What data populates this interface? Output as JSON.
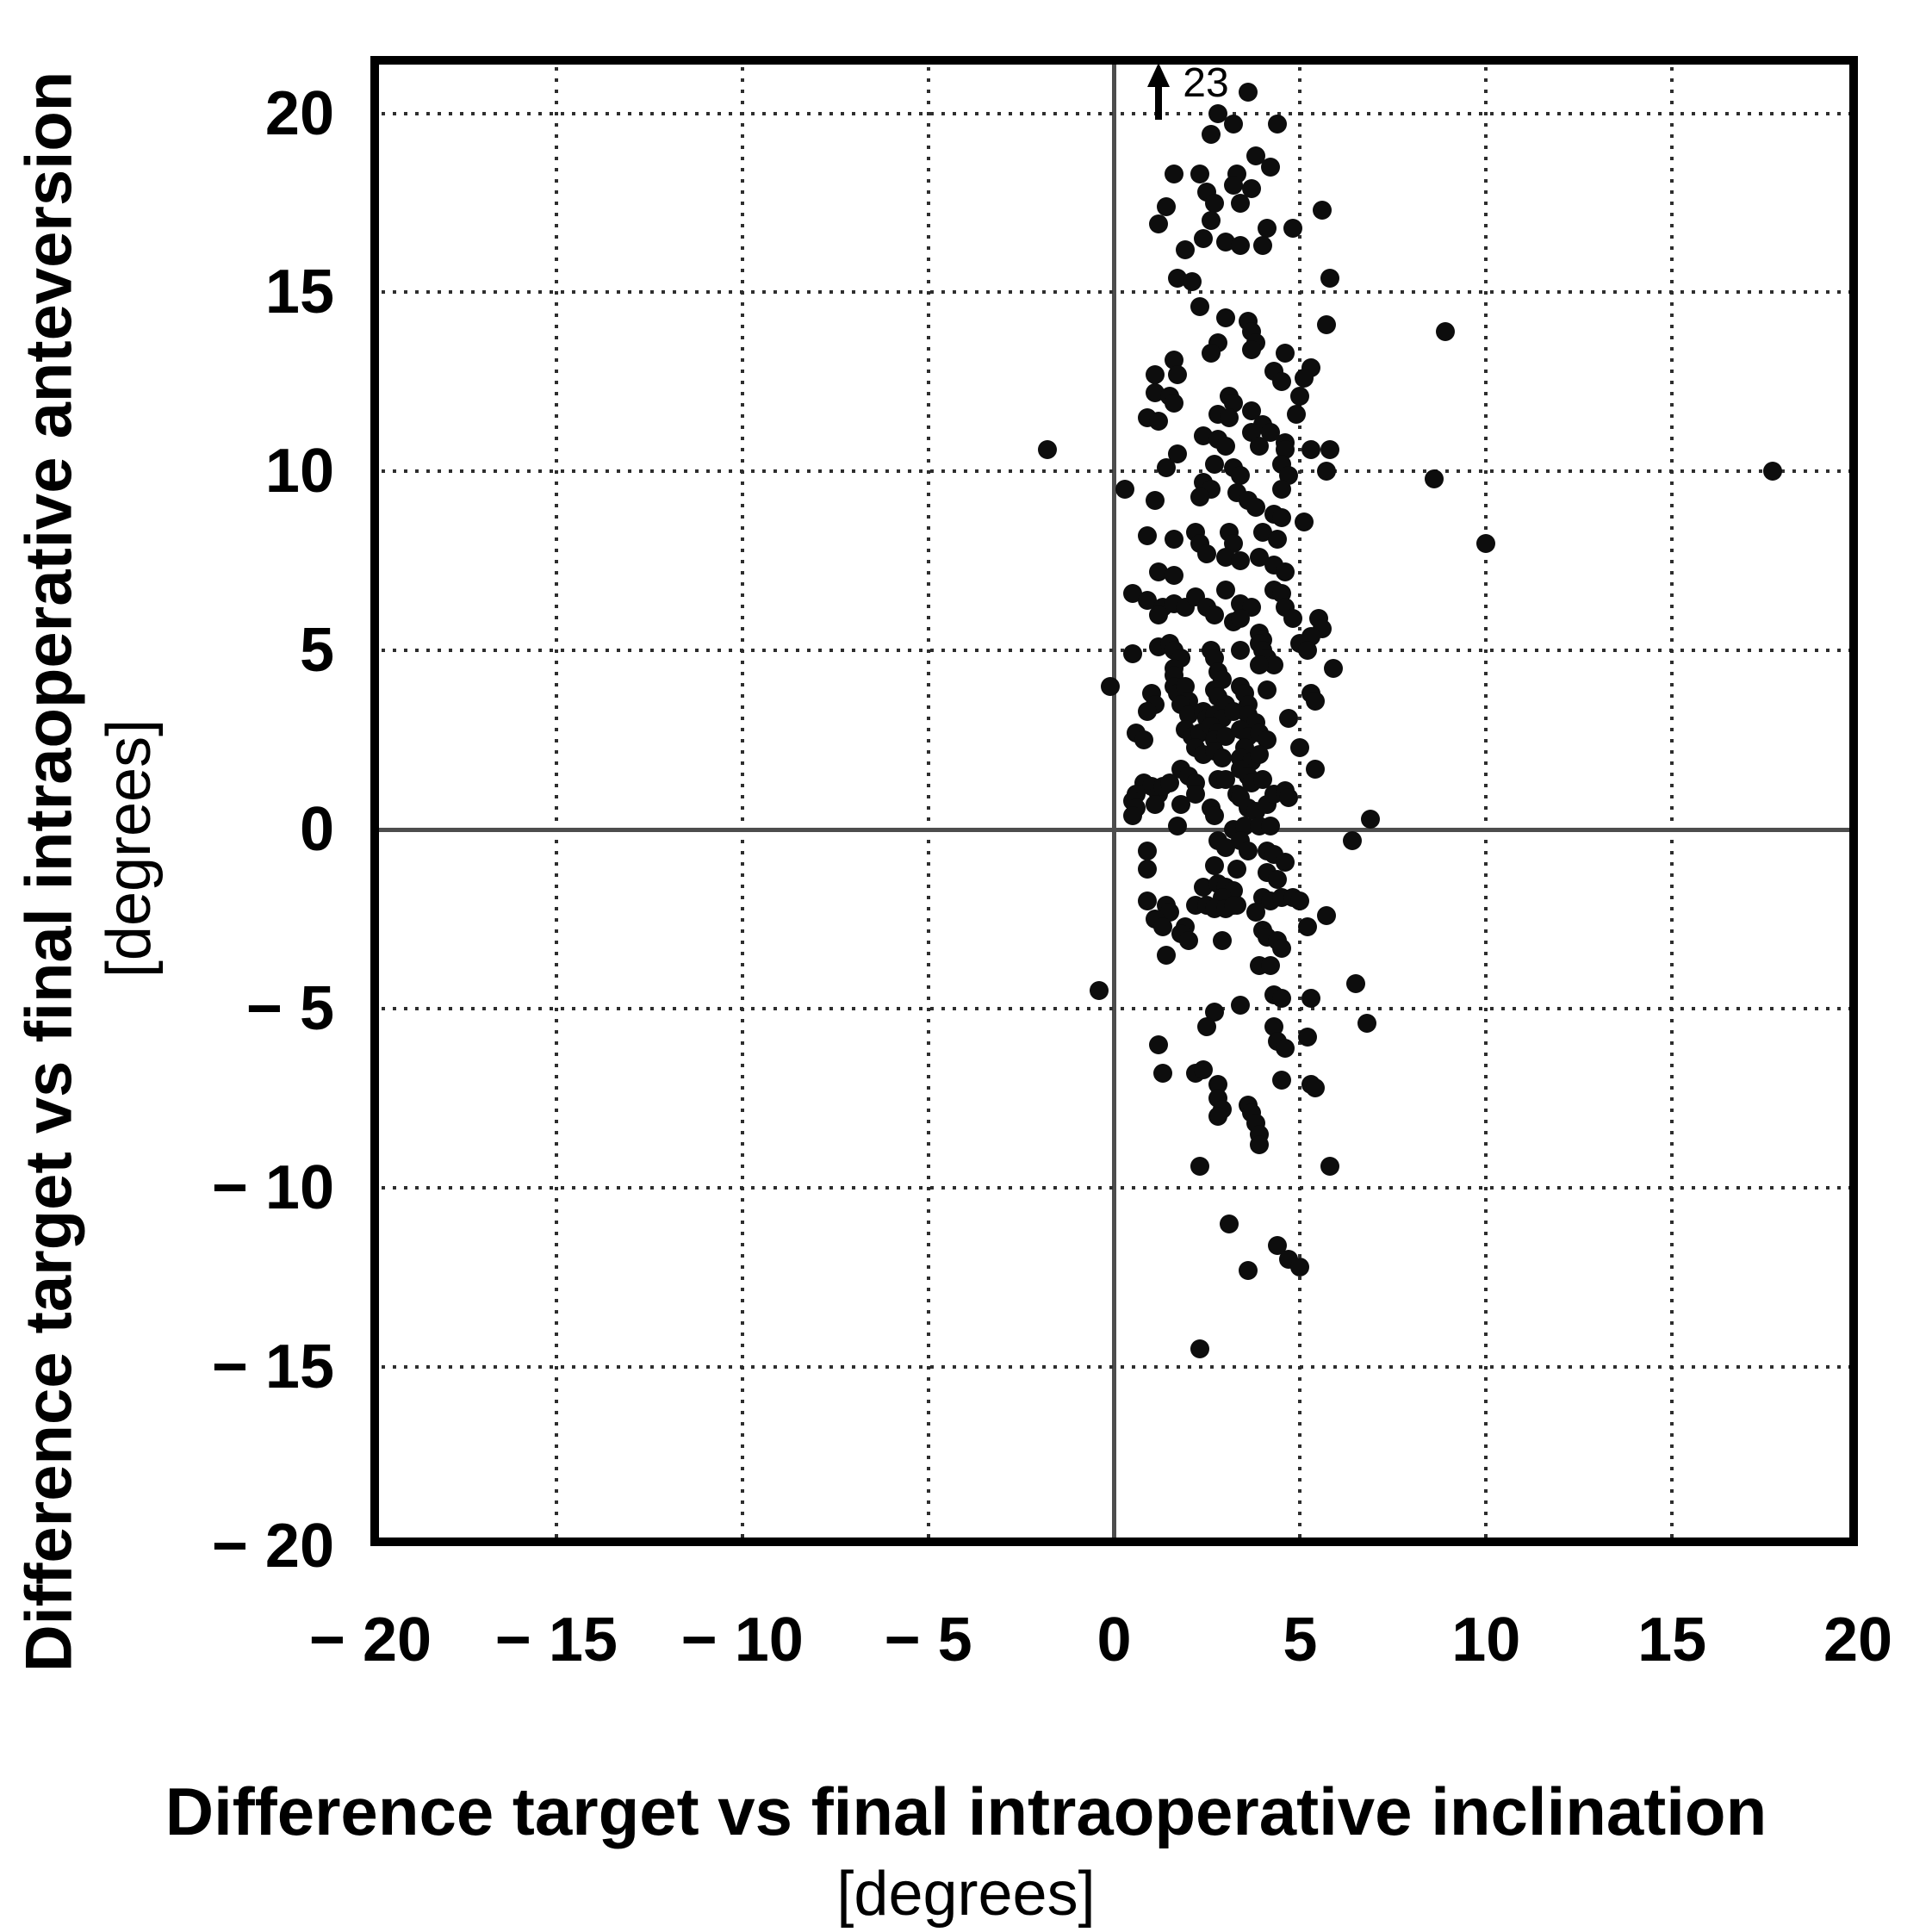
{
  "chart_data": {
    "type": "scatter",
    "title": "",
    "xlabel": "Difference target vs final intraoperative inclination",
    "xlabel_units": "[degrees]",
    "ylabel": "Difference target vs final intraoperative anteversion",
    "ylabel_units": "[degrees]",
    "xlim": [
      -20,
      20
    ],
    "ylim": [
      -20,
      21.6
    ],
    "x_ticks": [
      -20,
      -15,
      -10,
      -5,
      0,
      5,
      10,
      15,
      20
    ],
    "y_ticks": [
      20,
      15,
      10,
      5,
      0,
      -5,
      -10,
      -15,
      -20
    ],
    "x_tick_labels": [
      "− 20",
      "− 15",
      "− 10",
      "− 5",
      "0",
      "5",
      "10",
      "15",
      "20"
    ],
    "y_tick_labels": [
      "20",
      "15",
      "10",
      "5",
      "0",
      "− 5",
      "− 10",
      "− 15",
      "− 20"
    ],
    "grid": "dotted gridlines every 5 degrees; solid gray lines at x=0 and y=0",
    "legend": "none",
    "marker_color": "#0d0d0d",
    "grid_color": "#2e2e2e",
    "zero_line_color": "#4d4d4d",
    "offscale_annotation": {
      "label": "23",
      "x": 1.2,
      "meaning": "one point at anteversion 23 degrees, above axis range, marked with up arrow"
    },
    "points": [
      [
        3.6,
        20.6
      ],
      [
        2.8,
        20.0
      ],
      [
        3.2,
        19.7
      ],
      [
        4.4,
        19.7
      ],
      [
        2.6,
        19.4
      ],
      [
        3.8,
        18.8
      ],
      [
        4.2,
        18.5
      ],
      [
        1.6,
        18.3
      ],
      [
        2.3,
        18.3
      ],
      [
        3.3,
        18.3
      ],
      [
        3.2,
        18.0
      ],
      [
        3.7,
        17.9
      ],
      [
        2.5,
        17.8
      ],
      [
        2.7,
        17.5
      ],
      [
        3.4,
        17.5
      ],
      [
        1.4,
        17.4
      ],
      [
        5.6,
        17.3
      ],
      [
        2.6,
        17.0
      ],
      [
        1.2,
        16.9
      ],
      [
        4.1,
        16.8
      ],
      [
        4.8,
        16.8
      ],
      [
        2.4,
        16.5
      ],
      [
        3.0,
        16.4
      ],
      [
        3.4,
        16.3
      ],
      [
        4.0,
        16.3
      ],
      [
        1.9,
        16.2
      ],
      [
        5.8,
        15.4
      ],
      [
        1.7,
        15.4
      ],
      [
        2.1,
        15.3
      ],
      [
        2.3,
        14.6
      ],
      [
        3.0,
        14.3
      ],
      [
        3.6,
        14.2
      ],
      [
        5.7,
        14.1
      ],
      [
        3.7,
        13.9
      ],
      [
        2.8,
        13.6
      ],
      [
        3.8,
        13.6
      ],
      [
        3.7,
        13.4
      ],
      [
        2.6,
        13.3
      ],
      [
        4.6,
        13.3
      ],
      [
        1.6,
        13.1
      ],
      [
        1.7,
        12.7
      ],
      [
        1.1,
        12.7
      ],
      [
        4.3,
        12.8
      ],
      [
        5.3,
        12.9
      ],
      [
        5.1,
        12.6
      ],
      [
        4.5,
        12.5
      ],
      [
        1.1,
        12.2
      ],
      [
        1.5,
        12.1
      ],
      [
        1.6,
        11.9
      ],
      [
        3.1,
        12.1
      ],
      [
        3.2,
        11.9
      ],
      [
        5.0,
        12.1
      ],
      [
        4.9,
        11.6
      ],
      [
        0.9,
        11.5
      ],
      [
        1.2,
        11.4
      ],
      [
        2.8,
        11.6
      ],
      [
        3.1,
        11.5
      ],
      [
        3.7,
        11.7
      ],
      [
        4.0,
        11.3
      ],
      [
        4.2,
        11.1
      ],
      [
        3.7,
        11.1
      ],
      [
        2.4,
        11.0
      ],
      [
        2.8,
        10.9
      ],
      [
        3.0,
        10.7
      ],
      [
        3.9,
        10.7
      ],
      [
        4.6,
        10.8
      ],
      [
        4.6,
        10.6
      ],
      [
        5.3,
        10.6
      ],
      [
        5.8,
        10.6
      ],
      [
        1.7,
        10.5
      ],
      [
        1.4,
        10.1
      ],
      [
        2.7,
        10.2
      ],
      [
        3.2,
        10.1
      ],
      [
        3.4,
        9.9
      ],
      [
        4.5,
        10.2
      ],
      [
        4.7,
        9.9
      ],
      [
        5.7,
        10.0
      ],
      [
        0.3,
        9.5
      ],
      [
        1.1,
        9.2
      ],
      [
        2.4,
        9.7
      ],
      [
        2.6,
        9.5
      ],
      [
        2.3,
        9.3
      ],
      [
        3.3,
        9.4
      ],
      [
        3.6,
        9.2
      ],
      [
        3.8,
        9.0
      ],
      [
        4.5,
        9.5
      ],
      [
        4.3,
        8.8
      ],
      [
        4.5,
        8.7
      ],
      [
        5.1,
        8.6
      ],
      [
        0.9,
        8.2
      ],
      [
        1.6,
        8.1
      ],
      [
        2.2,
        8.3
      ],
      [
        2.3,
        8.0
      ],
      [
        3.1,
        8.3
      ],
      [
        3.2,
        8.0
      ],
      [
        4.0,
        8.3
      ],
      [
        4.4,
        8.1
      ],
      [
        2.5,
        7.7
      ],
      [
        3.0,
        7.6
      ],
      [
        3.4,
        7.5
      ],
      [
        3.9,
        7.6
      ],
      [
        4.3,
        7.4
      ],
      [
        1.2,
        7.2
      ],
      [
        1.6,
        7.1
      ],
      [
        4.6,
        7.2
      ],
      [
        0.5,
        6.6
      ],
      [
        0.9,
        6.4
      ],
      [
        1.3,
        6.2
      ],
      [
        1.2,
        6.0
      ],
      [
        1.6,
        6.3
      ],
      [
        1.9,
        6.2
      ],
      [
        2.2,
        6.5
      ],
      [
        2.5,
        6.2
      ],
      [
        2.7,
        6.0
      ],
      [
        3.0,
        6.7
      ],
      [
        3.4,
        6.3
      ],
      [
        3.7,
        6.2
      ],
      [
        3.2,
        5.8
      ],
      [
        3.4,
        5.9
      ],
      [
        4.3,
        6.7
      ],
      [
        4.5,
        6.6
      ],
      [
        4.6,
        6.2
      ],
      [
        4.8,
        5.9
      ],
      [
        3.9,
        5.5
      ],
      [
        4.0,
        5.3
      ],
      [
        5.5,
        5.9
      ],
      [
        5.6,
        5.6
      ],
      [
        5.3,
        5.4
      ],
      [
        0.5,
        4.9
      ],
      [
        1.2,
        5.1
      ],
      [
        1.5,
        5.2
      ],
      [
        1.6,
        5.0
      ],
      [
        1.8,
        4.8
      ],
      [
        2.6,
        5.0
      ],
      [
        2.7,
        4.8
      ],
      [
        3.4,
        5.0
      ],
      [
        3.9,
        5.2
      ],
      [
        4.0,
        5.0
      ],
      [
        4.1,
        4.8
      ],
      [
        4.3,
        4.6
      ],
      [
        3.9,
        4.6
      ],
      [
        5.0,
        5.2
      ],
      [
        5.2,
        5.0
      ],
      [
        5.9,
        4.5
      ],
      [
        2.8,
        4.4
      ],
      [
        1.6,
        4.5
      ],
      [
        1.6,
        4.3
      ],
      [
        2.9,
        4.2
      ],
      [
        -0.1,
        4.0
      ],
      [
        1.0,
        3.8
      ],
      [
        1.1,
        3.5
      ],
      [
        0.9,
        3.3
      ],
      [
        1.6,
        4.0
      ],
      [
        1.7,
        3.8
      ],
      [
        1.9,
        4.0
      ],
      [
        2.0,
        3.6
      ],
      [
        1.8,
        3.5
      ],
      [
        2.7,
        3.9
      ],
      [
        2.8,
        3.7
      ],
      [
        3.0,
        3.5
      ],
      [
        3.4,
        4.0
      ],
      [
        3.5,
        3.8
      ],
      [
        3.6,
        3.5
      ],
      [
        4.1,
        3.9
      ],
      [
        5.3,
        3.8
      ],
      [
        5.4,
        3.6
      ],
      [
        2.0,
        3.2
      ],
      [
        2.4,
        3.3
      ],
      [
        2.5,
        3.1
      ],
      [
        2.7,
        3.2
      ],
      [
        2.9,
        3.1
      ],
      [
        3.2,
        3.3
      ],
      [
        3.6,
        3.2
      ],
      [
        3.8,
        3.0
      ],
      [
        4.7,
        3.1
      ],
      [
        0.6,
        2.7
      ],
      [
        0.8,
        2.5
      ],
      [
        1.9,
        2.8
      ],
      [
        2.1,
        2.6
      ],
      [
        2.3,
        2.7
      ],
      [
        2.6,
        2.9
      ],
      [
        2.8,
        2.7
      ],
      [
        2.7,
        2.5
      ],
      [
        3.0,
        2.6
      ],
      [
        3.4,
        2.8
      ],
      [
        3.6,
        2.6
      ],
      [
        3.9,
        2.7
      ],
      [
        4.1,
        2.5
      ],
      [
        5.0,
        2.3
      ],
      [
        3.5,
        2.3
      ],
      [
        2.2,
        2.3
      ],
      [
        2.4,
        2.1
      ],
      [
        2.7,
        2.2
      ],
      [
        2.9,
        2.0
      ],
      [
        3.4,
        2.0
      ],
      [
        3.7,
        1.9
      ],
      [
        3.9,
        2.1
      ],
      [
        5.4,
        1.7
      ],
      [
        1.8,
        1.7
      ],
      [
        2.0,
        1.5
      ],
      [
        2.2,
        1.3
      ],
      [
        2.8,
        1.4
      ],
      [
        3.0,
        1.4
      ],
      [
        3.4,
        1.7
      ],
      [
        3.6,
        1.5
      ],
      [
        3.7,
        1.3
      ],
      [
        4.0,
        1.4
      ],
      [
        0.8,
        1.3
      ],
      [
        1.0,
        1.2
      ],
      [
        1.2,
        1.0
      ],
      [
        1.3,
        1.2
      ],
      [
        1.5,
        1.3
      ],
      [
        0.6,
        1.0
      ],
      [
        0.5,
        0.8
      ],
      [
        0.6,
        0.6
      ],
      [
        1.1,
        0.7
      ],
      [
        1.8,
        0.7
      ],
      [
        2.2,
        1.0
      ],
      [
        2.6,
        0.6
      ],
      [
        2.7,
        0.4
      ],
      [
        3.3,
        1.0
      ],
      [
        3.4,
        0.9
      ],
      [
        3.6,
        0.6
      ],
      [
        3.8,
        0.5
      ],
      [
        4.1,
        0.7
      ],
      [
        4.3,
        1.0
      ],
      [
        4.6,
        1.1
      ],
      [
        4.7,
        0.9
      ],
      [
        0.5,
        0.4
      ],
      [
        1.7,
        0.1
      ],
      [
        3.2,
        0.0
      ],
      [
        3.5,
        0.1
      ],
      [
        3.9,
        0.1
      ],
      [
        4.2,
        0.1
      ],
      [
        6.9,
        0.3
      ],
      [
        6.4,
        -0.3
      ],
      [
        2.8,
        -0.3
      ],
      [
        3.0,
        -0.5
      ],
      [
        3.4,
        -0.3
      ],
      [
        3.6,
        -0.6
      ],
      [
        4.1,
        -0.6
      ],
      [
        4.3,
        -0.7
      ],
      [
        0.9,
        -0.6
      ],
      [
        2.7,
        -1.0
      ],
      [
        3.3,
        -1.1
      ],
      [
        4.6,
        -0.9
      ],
      [
        0.9,
        -1.1
      ],
      [
        2.4,
        -1.6
      ],
      [
        2.8,
        -1.5
      ],
      [
        3.0,
        -1.6
      ],
      [
        3.2,
        -1.7
      ],
      [
        2.9,
        -1.9
      ],
      [
        3.3,
        -2.1
      ],
      [
        4.1,
        -1.2
      ],
      [
        4.4,
        -1.4
      ],
      [
        0.9,
        -2.0
      ],
      [
        1.4,
        -2.1
      ],
      [
        1.5,
        -2.3
      ],
      [
        1.1,
        -2.5
      ],
      [
        1.3,
        -2.7
      ],
      [
        2.2,
        -2.1
      ],
      [
        2.5,
        -2.1
      ],
      [
        2.7,
        -2.2
      ],
      [
        3.0,
        -2.2
      ],
      [
        3.2,
        -2.1
      ],
      [
        4.0,
        -1.9
      ],
      [
        4.2,
        -2.0
      ],
      [
        4.5,
        -1.9
      ],
      [
        4.8,
        -1.9
      ],
      [
        5.0,
        -2.0
      ],
      [
        3.8,
        -2.3
      ],
      [
        5.2,
        -2.7
      ],
      [
        5.7,
        -2.4
      ],
      [
        1.9,
        -2.7
      ],
      [
        1.8,
        -2.9
      ],
      [
        2.0,
        -3.1
      ],
      [
        2.9,
        -3.1
      ],
      [
        4.0,
        -2.8
      ],
      [
        4.1,
        -3.0
      ],
      [
        4.4,
        -3.1
      ],
      [
        4.5,
        -3.3
      ],
      [
        1.4,
        -3.5
      ],
      [
        3.9,
        -3.8
      ],
      [
        4.2,
        -3.8
      ],
      [
        -0.4,
        -4.5
      ],
      [
        6.5,
        -4.3
      ],
      [
        3.4,
        -4.9
      ],
      [
        4.3,
        -4.6
      ],
      [
        4.5,
        -4.7
      ],
      [
        5.3,
        -4.7
      ],
      [
        2.7,
        -5.1
      ],
      [
        2.5,
        -5.5
      ],
      [
        6.8,
        -5.4
      ],
      [
        4.3,
        -5.5
      ],
      [
        1.2,
        -6.0
      ],
      [
        4.4,
        -5.9
      ],
      [
        4.6,
        -6.1
      ],
      [
        5.2,
        -5.8
      ],
      [
        1.3,
        -6.8
      ],
      [
        2.2,
        -6.8
      ],
      [
        2.4,
        -6.7
      ],
      [
        2.8,
        -7.1
      ],
      [
        4.5,
        -7.0
      ],
      [
        5.3,
        -7.1
      ],
      [
        5.4,
        -7.2
      ],
      [
        2.8,
        -7.5
      ],
      [
        2.9,
        -7.8
      ],
      [
        2.8,
        -8.0
      ],
      [
        3.6,
        -7.7
      ],
      [
        3.7,
        -7.9
      ],
      [
        3.8,
        -8.2
      ],
      [
        3.9,
        -8.5
      ],
      [
        3.9,
        -8.8
      ],
      [
        2.3,
        -9.4
      ],
      [
        5.8,
        -9.4
      ],
      [
        3.1,
        -11.0
      ],
      [
        4.4,
        -11.6
      ],
      [
        4.7,
        -12.0
      ],
      [
        5.0,
        -12.2
      ],
      [
        3.6,
        -12.3
      ],
      [
        2.3,
        -14.5
      ],
      [
        -1.8,
        10.6
      ],
      [
        8.9,
        13.9
      ],
      [
        8.6,
        9.8
      ],
      [
        10.0,
        8.0
      ],
      [
        17.7,
        10.0
      ]
    ]
  }
}
